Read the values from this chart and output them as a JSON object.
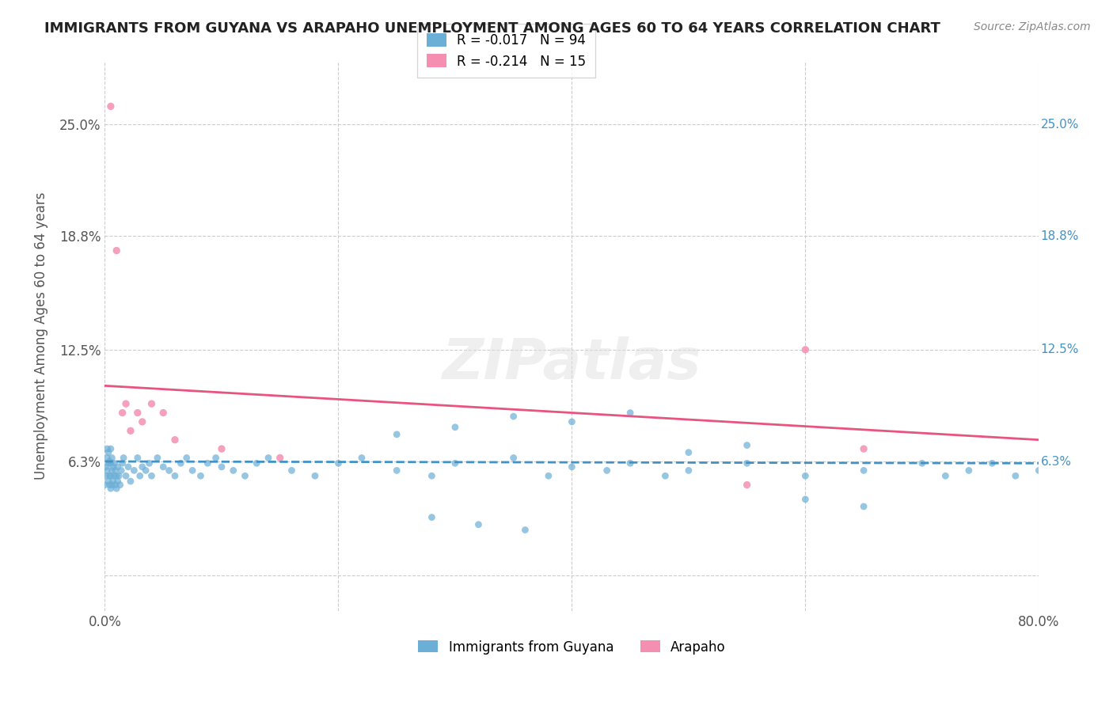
{
  "title": "IMMIGRANTS FROM GUYANA VS ARAPAHO UNEMPLOYMENT AMONG AGES 60 TO 64 YEARS CORRELATION CHART",
  "source": "Source: ZipAtlas.com",
  "ylabel": "Unemployment Among Ages 60 to 64 years",
  "xlabel": "",
  "xlim": [
    0,
    0.8
  ],
  "ylim": [
    -0.02,
    0.285
  ],
  "yticks": [
    0,
    0.063,
    0.125,
    0.188,
    0.25
  ],
  "ytick_labels": [
    "",
    "6.3%",
    "12.5%",
    "18.8%",
    "25.0%"
  ],
  "xticks": [
    0,
    0.2,
    0.4,
    0.6,
    0.8
  ],
  "xtick_labels": [
    "0.0%",
    "",
    "",
    "",
    "80.0%"
  ],
  "watermark": "ZIPatlas",
  "legend_entries": [
    {
      "label": "Immigrants from Guyana",
      "R": -0.017,
      "N": 94,
      "color": "#a8c4e0"
    },
    {
      "label": "Arapaho",
      "R": -0.214,
      "N": 15,
      "color": "#f4a0b0"
    }
  ],
  "blue_scatter_x": [
    0.0,
    0.001,
    0.001,
    0.002,
    0.002,
    0.002,
    0.003,
    0.003,
    0.003,
    0.004,
    0.004,
    0.004,
    0.005,
    0.005,
    0.005,
    0.005,
    0.006,
    0.006,
    0.006,
    0.007,
    0.007,
    0.008,
    0.008,
    0.009,
    0.009,
    0.01,
    0.01,
    0.011,
    0.011,
    0.012,
    0.013,
    0.014,
    0.015,
    0.016,
    0.018,
    0.02,
    0.022,
    0.025,
    0.028,
    0.03,
    0.032,
    0.035,
    0.038,
    0.04,
    0.045,
    0.05,
    0.055,
    0.06,
    0.065,
    0.07,
    0.075,
    0.082,
    0.088,
    0.095,
    0.1,
    0.11,
    0.12,
    0.13,
    0.14,
    0.16,
    0.18,
    0.2,
    0.22,
    0.25,
    0.28,
    0.3,
    0.35,
    0.38,
    0.4,
    0.43,
    0.45,
    0.48,
    0.5,
    0.55,
    0.6,
    0.65,
    0.7,
    0.72,
    0.74,
    0.76,
    0.78,
    0.8,
    0.4,
    0.45,
    0.5,
    0.55,
    0.25,
    0.3,
    0.35,
    0.6,
    0.65,
    0.28,
    0.32,
    0.36
  ],
  "blue_scatter_y": [
    0.05,
    0.055,
    0.06,
    0.058,
    0.065,
    0.07,
    0.052,
    0.062,
    0.068,
    0.05,
    0.055,
    0.063,
    0.048,
    0.055,
    0.062,
    0.07,
    0.05,
    0.058,
    0.065,
    0.052,
    0.06,
    0.055,
    0.062,
    0.05,
    0.058,
    0.048,
    0.055,
    0.052,
    0.06,
    0.055,
    0.05,
    0.058,
    0.062,
    0.065,
    0.055,
    0.06,
    0.052,
    0.058,
    0.065,
    0.055,
    0.06,
    0.058,
    0.062,
    0.055,
    0.065,
    0.06,
    0.058,
    0.055,
    0.062,
    0.065,
    0.058,
    0.055,
    0.062,
    0.065,
    0.06,
    0.058,
    0.055,
    0.062,
    0.065,
    0.058,
    0.055,
    0.062,
    0.065,
    0.058,
    0.055,
    0.062,
    0.065,
    0.055,
    0.06,
    0.058,
    0.062,
    0.055,
    0.058,
    0.062,
    0.055,
    0.058,
    0.062,
    0.055,
    0.058,
    0.062,
    0.055,
    0.058,
    0.085,
    0.09,
    0.068,
    0.072,
    0.078,
    0.082,
    0.088,
    0.042,
    0.038,
    0.032,
    0.028,
    0.025
  ],
  "pink_scatter_x": [
    0.005,
    0.01,
    0.015,
    0.018,
    0.022,
    0.028,
    0.032,
    0.04,
    0.05,
    0.06,
    0.1,
    0.15,
    0.6,
    0.65,
    0.55
  ],
  "pink_scatter_y": [
    0.26,
    0.18,
    0.09,
    0.095,
    0.08,
    0.09,
    0.085,
    0.095,
    0.09,
    0.075,
    0.07,
    0.065,
    0.125,
    0.07,
    0.05
  ],
  "blue_line_x": [
    0.0,
    0.8
  ],
  "blue_line_y": [
    0.063,
    0.062
  ],
  "pink_line_x": [
    0.0,
    0.8
  ],
  "pink_line_y": [
    0.105,
    0.075
  ],
  "blue_color": "#6baed6",
  "pink_color": "#f48fb1",
  "blue_line_color": "#4292c6",
  "pink_line_color": "#e75480",
  "background_color": "#ffffff",
  "grid_color": "#cccccc"
}
